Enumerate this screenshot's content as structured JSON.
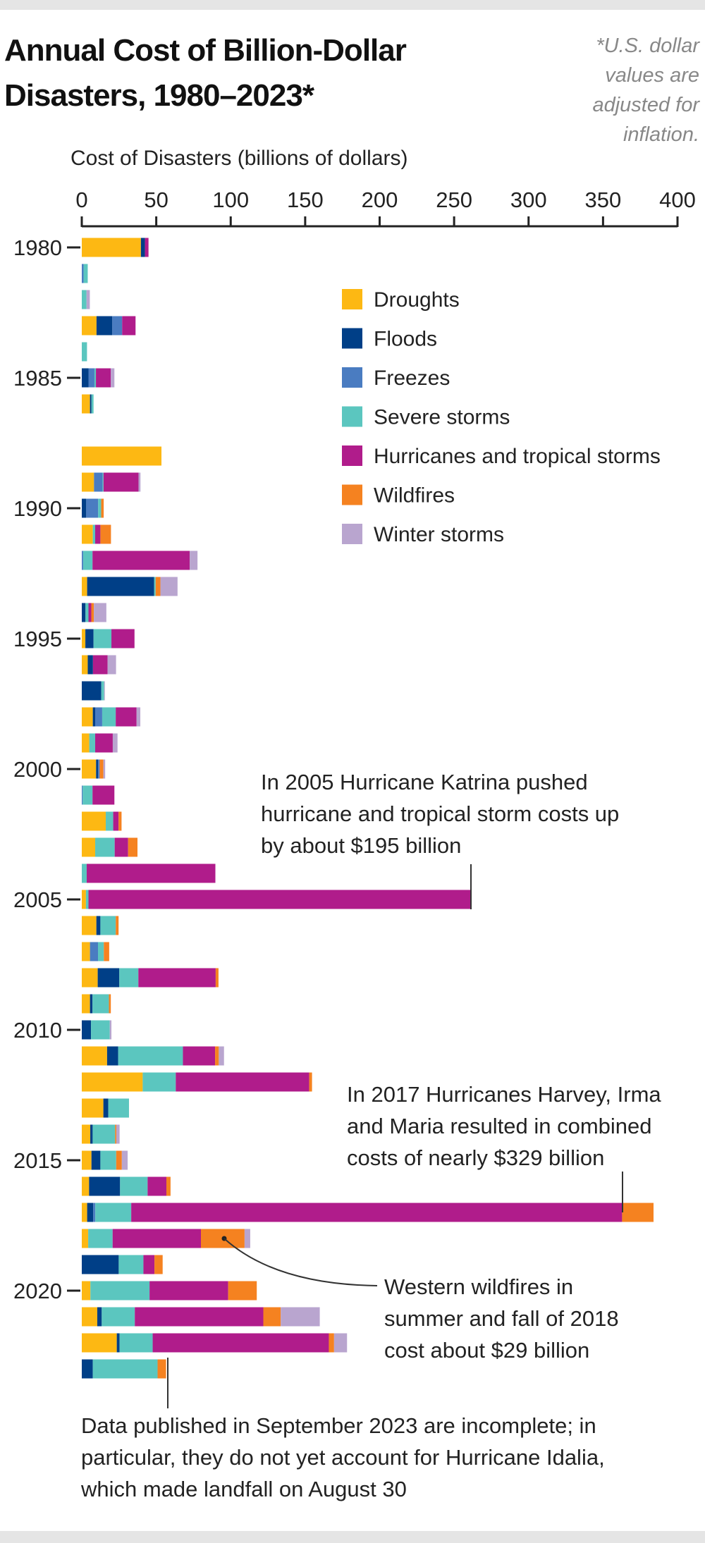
{
  "title_lines": [
    "Annual Cost of Billion-Dollar",
    "Disasters, 1980–2023*"
  ],
  "footnote_lines": [
    "*U.S. dollar",
    "values are",
    "adjusted for",
    "inflation."
  ],
  "annotations": {
    "katrina": [
      "In 2005 Hurricane Katrina pushed",
      "hurricane and tropical storm costs up",
      "by about $195 billion"
    ],
    "harvey": [
      "In 2017 Hurricanes Harvey, Irma",
      "and Maria resulted in combined",
      "costs of nearly $329 billion"
    ],
    "wildfires": [
      "Western wildfires in",
      "summer and fall of 2018",
      "cost about $29 billion"
    ],
    "incomplete": [
      "Data published in September 2023 are incomplete; in",
      "particular, they do not yet account for Hurricane Idalia,",
      "which made landfall on August 30"
    ]
  },
  "chart_data": {
    "type": "bar",
    "orientation": "horizontal",
    "stacked": true,
    "title": "Annual Cost of Billion-Dollar Disasters, 1980–2023*",
    "xlabel": "Cost of Disasters (billions of dollars)",
    "ylabel": "",
    "xlim": [
      0,
      400
    ],
    "x_ticks": [
      0,
      50,
      100,
      150,
      200,
      250,
      300,
      350,
      400
    ],
    "y_tick_labels": [
      "1980",
      "1985",
      "1990",
      "1995",
      "2000",
      "2005",
      "2010",
      "2015",
      "2020"
    ],
    "grid": false,
    "legend_position": "top-right",
    "categories": [
      1980,
      1981,
      1982,
      1983,
      1984,
      1985,
      1986,
      1987,
      1988,
      1989,
      1990,
      1991,
      1992,
      1993,
      1994,
      1995,
      1996,
      1997,
      1998,
      1999,
      2000,
      2001,
      2002,
      2003,
      2004,
      2005,
      2006,
      2007,
      2008,
      2009,
      2010,
      2011,
      2012,
      2013,
      2014,
      2015,
      2016,
      2017,
      2018,
      2019,
      2020,
      2021,
      2022,
      2023
    ],
    "series": [
      {
        "name": "Droughts",
        "color": "#FDB813",
        "values": [
          39.7,
          0,
          0,
          9.9,
          0,
          0,
          5.5,
          0,
          53.5,
          8.2,
          0,
          7.4,
          0,
          3.6,
          0,
          2.4,
          4,
          0,
          7.4,
          5,
          9.6,
          0,
          16.1,
          9,
          0,
          2.8,
          9.8,
          5.5,
          10.7,
          5.5,
          0,
          17,
          40.9,
          14.5,
          5.7,
          6.5,
          4.9,
          3.6,
          4.3,
          0,
          5.8,
          10.4,
          23.5,
          0
        ]
      },
      {
        "name": "Floods",
        "color": "#003F87",
        "values": [
          2.7,
          0,
          0,
          10.6,
          0,
          4.5,
          1,
          0,
          0,
          0,
          3,
          0,
          0,
          45,
          2.5,
          5.5,
          3.5,
          13.1,
          1.6,
          0,
          1.4,
          0,
          0,
          0,
          0,
          0,
          2.7,
          0,
          14.5,
          1.7,
          6.2,
          7.4,
          0,
          3.3,
          1.6,
          6,
          20.8,
          4.1,
          0,
          24.8,
          0,
          3,
          1.9,
          7.4
        ]
      },
      {
        "name": "Freezes",
        "color": "#4A7CC1",
        "values": [
          0,
          1.2,
          0,
          6.6,
          0,
          4,
          0,
          0,
          0,
          5.8,
          8,
          0,
          0.9,
          0,
          0,
          0,
          0,
          0,
          4.7,
          0,
          1,
          0.6,
          0,
          0,
          0,
          0,
          0,
          5.4,
          0,
          0,
          0,
          0,
          0,
          0,
          0,
          0,
          0,
          1.4,
          0,
          0,
          0,
          0,
          0,
          0
        ]
      },
      {
        "name": "Severe storms",
        "color": "#5BC6BF",
        "values": [
          0,
          2.8,
          3.2,
          0,
          3.5,
          1,
          1.4,
          0,
          0,
          0.6,
          2,
          1.6,
          6.3,
          1,
          2,
          12,
          0,
          1.9,
          9.1,
          4,
          0,
          6.6,
          5,
          13.1,
          3.3,
          1.7,
          10.3,
          3.9,
          12.8,
          11,
          12.6,
          43.5,
          22.2,
          13.9,
          15.1,
          10.6,
          18.5,
          24.1,
          16.4,
          16.6,
          39.7,
          22.2,
          22.2,
          43.5
        ]
      },
      {
        "name": "Hurricanes and tropical storms",
        "color": "#B01C8B",
        "values": [
          2.4,
          0,
          0,
          9,
          0,
          10,
          0,
          0,
          0,
          23.5,
          0,
          3.5,
          65.3,
          0,
          1.9,
          15.5,
          9.8,
          0,
          14,
          11.8,
          0,
          14.7,
          3.6,
          9,
          86.4,
          256.6,
          0,
          0,
          51.9,
          0,
          0,
          21.6,
          89.6,
          0,
          0,
          0,
          12.6,
          329.6,
          59.3,
          7.4,
          52.8,
          86.3,
          118.3,
          0
        ]
      },
      {
        "name": "Wildfires",
        "color": "#F58220",
        "values": [
          0,
          0,
          0,
          0,
          0,
          0,
          0,
          0,
          0,
          0,
          1.7,
          7.1,
          0,
          3.2,
          1.7,
          0,
          0,
          0,
          0,
          0,
          2.5,
          0,
          2,
          6.3,
          0,
          0,
          1.9,
          3.6,
          1.9,
          1.3,
          0,
          2.5,
          1.9,
          0,
          0.8,
          3.8,
          2.8,
          21.1,
          29.3,
          5.5,
          19.2,
          11.7,
          3.5,
          5.7
        ]
      },
      {
        "name": "Winter storms",
        "color": "#B9A5CF",
        "values": [
          0,
          0,
          2.2,
          0,
          0,
          2.4,
          0,
          0,
          0,
          1.3,
          0,
          0,
          5.2,
          11.5,
          8.4,
          0,
          5.7,
          0.5,
          2.5,
          3.2,
          1.2,
          0,
          0,
          0,
          0,
          0,
          0,
          0,
          0,
          0,
          1.1,
          3.5,
          0,
          0,
          2.2,
          3.9,
          0,
          0,
          3.8,
          0,
          0,
          26.2,
          8.7,
          0
        ]
      }
    ]
  }
}
